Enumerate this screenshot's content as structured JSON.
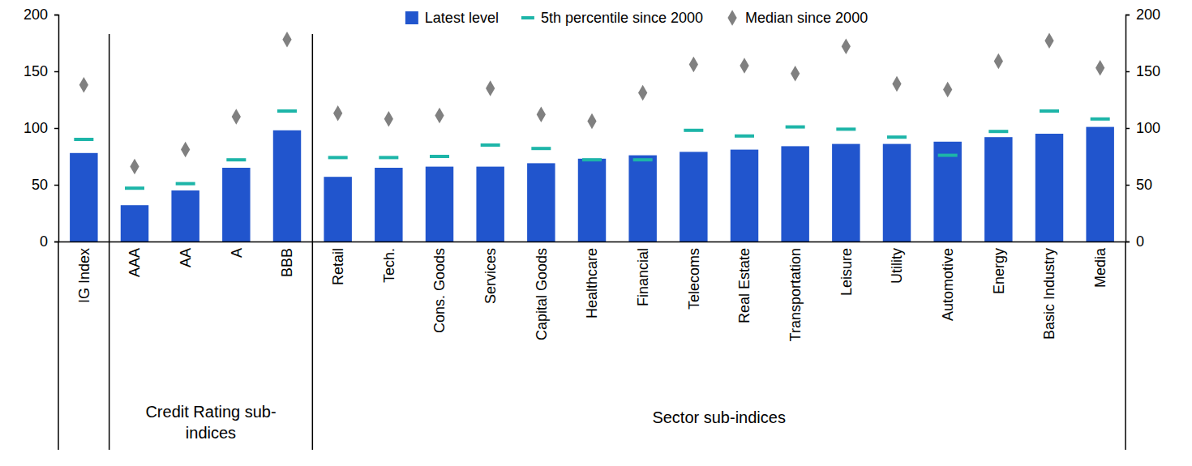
{
  "chart_data": {
    "type": "bar",
    "categories": [
      "IG Index",
      "AAA",
      "AA",
      "A",
      "BBB",
      "Retail",
      "Tech.",
      "Cons. Goods",
      "Services",
      "Capital Goods",
      "Healthcare",
      "Financial",
      "Telecoms",
      "Real Estate",
      "Transportation",
      "Leisure",
      "Utility",
      "Automotive",
      "Energy",
      "Basic Industry",
      "Media"
    ],
    "groups": [
      {
        "label": "Credit Rating sub-indices",
        "categories": [
          "AAA",
          "AA",
          "A",
          "BBB"
        ]
      },
      {
        "label": "Sector sub-indices",
        "categories": [
          "Retail",
          "Tech.",
          "Cons. Goods",
          "Services",
          "Capital Goods",
          "Healthcare",
          "Financial",
          "Telecoms",
          "Real Estate",
          "Transportation",
          "Leisure",
          "Utility",
          "Automotive",
          "Energy",
          "Basic Industry",
          "Media"
        ]
      }
    ],
    "series": [
      {
        "name": "Latest level",
        "type": "bar",
        "color": "#2155cd",
        "values": [
          78,
          32,
          45,
          65,
          98,
          57,
          65,
          66,
          66,
          69,
          73,
          76,
          79,
          81,
          84,
          86,
          86,
          88,
          92,
          95,
          101
        ]
      },
      {
        "name": "5th percentile since 2000",
        "type": "scatter",
        "marker": "dash",
        "color": "#1db5a8",
        "values": [
          90,
          47,
          51,
          72,
          115,
          74,
          74,
          75,
          85,
          82,
          72,
          72,
          98,
          93,
          101,
          99,
          92,
          76,
          97,
          115,
          108
        ]
      },
      {
        "name": "Median since 2000",
        "type": "scatter",
        "marker": "diamond",
        "color": "#808080",
        "values": [
          138,
          66,
          81,
          110,
          178,
          113,
          108,
          111,
          135,
          112,
          106,
          131,
          156,
          155,
          148,
          172,
          139,
          134,
          159,
          177,
          153
        ]
      }
    ],
    "ylim": [
      0,
      200
    ],
    "yticks": [
      0,
      50,
      100,
      150,
      200
    ],
    "y2lim": [
      0,
      200
    ],
    "y2ticks": [
      0,
      50,
      100,
      150,
      200
    ],
    "legend": "top",
    "grid": false
  }
}
